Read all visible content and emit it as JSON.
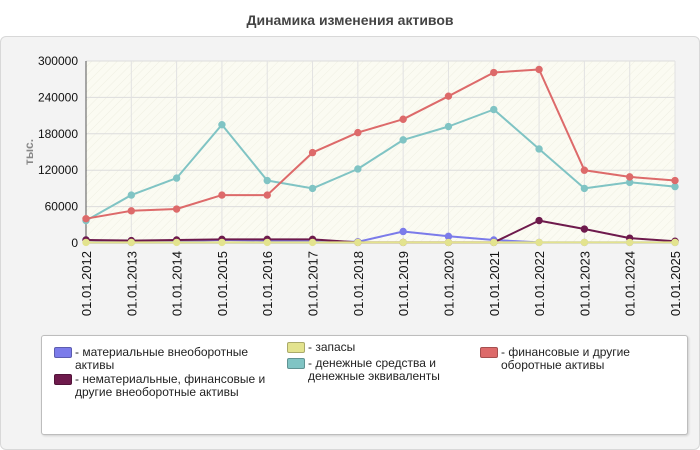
{
  "chart_data": {
    "type": "line",
    "title": "Динамика изменения активов",
    "ylabel": "тыс.",
    "xlabel": "",
    "ylim": [
      0,
      300000
    ],
    "yticks": [
      "300000",
      "240000",
      "180000",
      "120000",
      "60000",
      "0"
    ],
    "categories": [
      "01.01.2012",
      "01.01.2013",
      "01.01.2014",
      "01.01.2015",
      "01.01.2016",
      "01.01.2017",
      "01.01.2018",
      "01.01.2019",
      "01.01.2020",
      "01.01.2021",
      "01.01.2022",
      "01.01.2023",
      "01.01.2024",
      "01.01.2025"
    ],
    "grid": true,
    "legend_position": "bottom",
    "series": [
      {
        "name": "- материальные внеоборотные активы",
        "color": "#7b7bea",
        "values": [
          5000,
          1000,
          3000,
          5000,
          4000,
          3000,
          2000,
          19000,
          11000,
          5000,
          1000,
          1000,
          1000,
          1000
        ]
      },
      {
        "name": "- нематериальные, финансовые и другие внеоборотные активы",
        "color": "#6e1a4c",
        "values": [
          5000,
          4000,
          5000,
          6000,
          6000,
          6000,
          1000,
          1000,
          1000,
          1000,
          37000,
          23000,
          8000,
          3000
        ]
      },
      {
        "name": "- запасы",
        "color": "#e3e38e",
        "values": [
          1000,
          1000,
          1000,
          1000,
          1000,
          1000,
          1000,
          1000,
          1000,
          1000,
          1000,
          1000,
          1000,
          1000
        ]
      },
      {
        "name": "- денежные средства и денежные эквиваленты",
        "color": "#80c4c4",
        "values": [
          37000,
          79000,
          107000,
          195000,
          103000,
          90000,
          122000,
          170000,
          192000,
          220000,
          155000,
          90000,
          100000,
          93000
        ]
      },
      {
        "name": "- финансовые и другие оборотные активы",
        "color": "#dd6a6a",
        "values": [
          40000,
          53000,
          56000,
          79000,
          79000,
          149000,
          182000,
          204000,
          242000,
          281000,
          286000,
          120000,
          109000,
          103000
        ]
      }
    ]
  }
}
